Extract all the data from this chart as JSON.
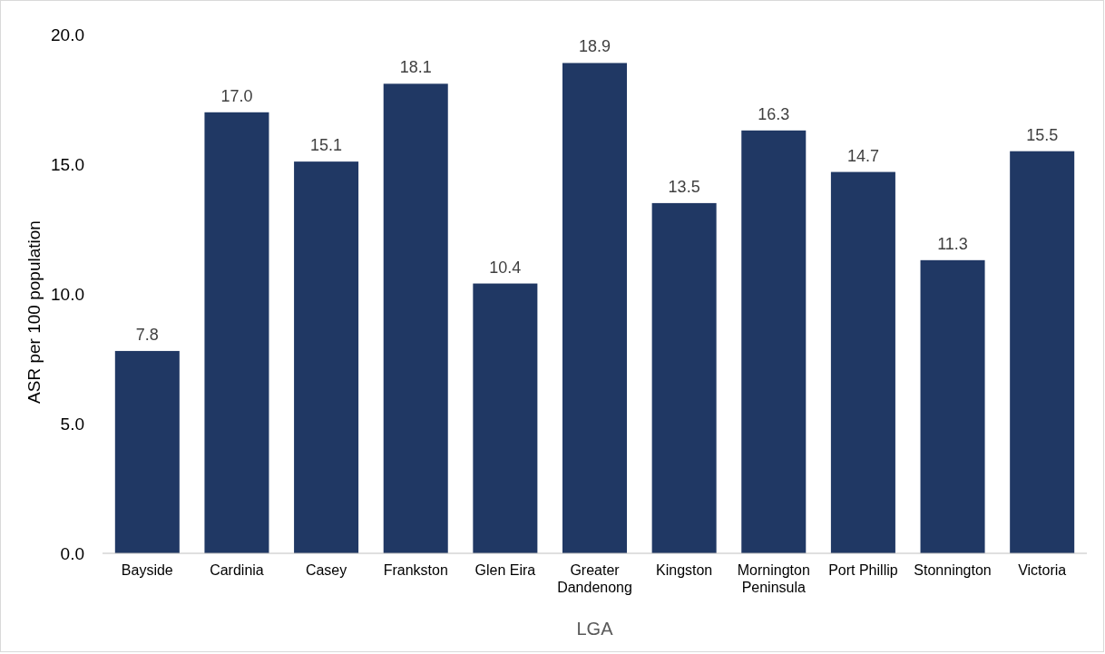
{
  "chart_data": {
    "type": "bar",
    "xlabel": "LGA",
    "ylabel": "ASR per 100 population",
    "categories": [
      "Bayside",
      "Cardinia",
      "Casey",
      "Frankston",
      "Glen Eira",
      "Greater Dandenong",
      "Kingston",
      "Mornington Peninsula",
      "Port Phillip",
      "Stonnington",
      "Victoria"
    ],
    "values": [
      7.8,
      17.0,
      15.1,
      18.1,
      10.4,
      18.9,
      13.5,
      16.3,
      14.7,
      11.3,
      15.5
    ],
    "color": "#203864",
    "ylim": [
      0,
      20
    ],
    "yticks": [
      {
        "value": 0,
        "label": "0.0"
      },
      {
        "value": 5,
        "label": "5.0"
      },
      {
        "value": 10,
        "label": "10.0"
      },
      {
        "value": 15,
        "label": "15.0"
      },
      {
        "value": 20,
        "label": "20.0"
      }
    ],
    "value_labels": [
      "7.8",
      "17.0",
      "15.1",
      "18.1",
      "10.4",
      "18.9",
      "13.5",
      "16.3",
      "14.7",
      "11.3",
      "15.5"
    ],
    "grid": false
  }
}
